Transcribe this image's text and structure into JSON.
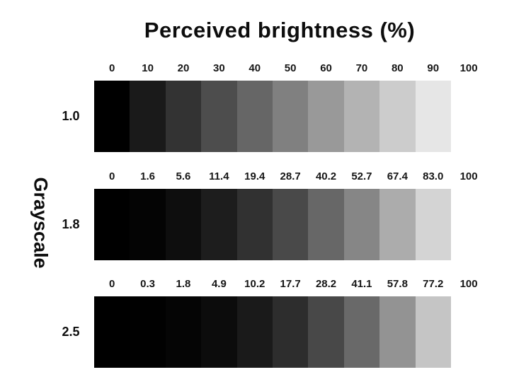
{
  "title": "Perceived brightness (%)",
  "y_axis_label": "Grayscale",
  "colors": {
    "background": "#ffffff",
    "text": "#0d0d0d",
    "label_text": "#161616"
  },
  "chart_data": {
    "type": "heatmap",
    "title": "Perceived brightness (%)",
    "row_axis_label": "Grayscale",
    "legend_position": "none",
    "grid": false,
    "columns_per_row": 11,
    "value_range": [
      0,
      100
    ],
    "gamma_values": [
      "1.0",
      "1.8",
      "2.5"
    ],
    "rows": [
      {
        "gamma": "1.0",
        "labels": [
          "0",
          "10",
          "20",
          "30",
          "40",
          "50",
          "60",
          "70",
          "80",
          "90",
          "100"
        ],
        "values": [
          0,
          10,
          20,
          30,
          40,
          50,
          60,
          70,
          80,
          90,
          100
        ]
      },
      {
        "gamma": "1.8",
        "labels": [
          "0",
          "1.6",
          "5.6",
          "11.4",
          "19.4",
          "28.7",
          "40.2",
          "52.7",
          "67.4",
          "83.0",
          "100"
        ],
        "values": [
          0,
          1.6,
          5.6,
          11.4,
          19.4,
          28.7,
          40.2,
          52.7,
          67.4,
          83.0,
          100
        ]
      },
      {
        "gamma": "2.5",
        "labels": [
          "0",
          "0.3",
          "1.8",
          "4.9",
          "10.2",
          "17.7",
          "28.2",
          "41.1",
          "57.8",
          "77.2",
          "100"
        ],
        "values": [
          0,
          0.3,
          1.8,
          4.9,
          10.2,
          17.7,
          28.2,
          41.1,
          57.8,
          77.2,
          100
        ]
      }
    ]
  }
}
